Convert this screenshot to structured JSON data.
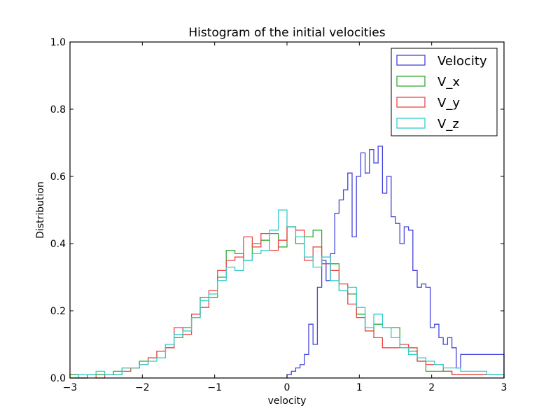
{
  "chart_data": {
    "type": "histogram-step",
    "title": "Histogram of the initial velocities",
    "xlabel": "velocity",
    "ylabel": "Distribution",
    "xlim": [
      -3,
      3
    ],
    "ylim": [
      0,
      1.0
    ],
    "x_ticks": [
      -3,
      -2,
      -1,
      0,
      1,
      2,
      3
    ],
    "x_tick_labels": [
      "−3",
      "−2",
      "−1",
      "0",
      "1",
      "2",
      "3"
    ],
    "y_ticks": [
      0,
      0.2,
      0.4,
      0.6,
      0.8,
      1.0
    ],
    "y_tick_labels": [
      "0.0",
      "0.2",
      "0.4",
      "0.6",
      "0.8",
      "1.0"
    ],
    "grid": false,
    "legend_position": "top-right",
    "series": [
      {
        "name": "Velocity",
        "color": "#4444dd",
        "x": [
          0,
          0.06,
          0.12,
          0.18,
          0.24,
          0.3,
          0.36,
          0.42,
          0.48,
          0.54,
          0.6,
          0.66,
          0.72,
          0.78,
          0.84,
          0.9,
          0.96,
          1.02,
          1.08,
          1.14,
          1.2,
          1.26,
          1.32,
          1.38,
          1.44,
          1.5,
          1.56,
          1.62,
          1.68,
          1.74,
          1.8,
          1.86,
          1.92,
          1.98,
          2.04,
          2.1,
          2.16,
          2.22,
          2.28,
          2.34,
          2.4,
          2.46,
          2.52,
          2.58,
          2.64,
          2.7,
          2.76,
          2.82,
          2.88,
          2.94
        ],
        "y": [
          0.01,
          0.02,
          0.03,
          0.04,
          0.07,
          0.16,
          0.1,
          0.27,
          0.35,
          0.29,
          0.37,
          0.49,
          0.53,
          0.56,
          0.61,
          0.42,
          0.6,
          0.67,
          0.61,
          0.68,
          0.64,
          0.69,
          0.55,
          0.6,
          0.48,
          0.46,
          0.4,
          0.45,
          0.44,
          0.32,
          0.27,
          0.28,
          0.27,
          0.15,
          0.16,
          0.12,
          0.1,
          0.12,
          0.09,
          0.03,
          0.07,
          0.07,
          0.07,
          0.07,
          0.07,
          0.07,
          0.07,
          0.07,
          0.07,
          0.07
        ]
      },
      {
        "name": "V_x",
        "color": "#33aa33",
        "x": [
          -3,
          -2.88,
          -2.76,
          -2.64,
          -2.52,
          -2.4,
          -2.28,
          -2.16,
          -2.04,
          -1.92,
          -1.8,
          -1.68,
          -1.56,
          -1.44,
          -1.32,
          -1.2,
          -1.08,
          -0.96,
          -0.84,
          -0.72,
          -0.6,
          -0.48,
          -0.36,
          -0.24,
          -0.12,
          0,
          0.12,
          0.24,
          0.36,
          0.48,
          0.6,
          0.72,
          0.84,
          0.96,
          1.08,
          1.2,
          1.32,
          1.44,
          1.56,
          1.68,
          1.8,
          1.92,
          2.04,
          2.16,
          2.28,
          2.4,
          2.52,
          2.64,
          2.76,
          2.88
        ],
        "y": [
          0.01,
          0.0,
          0.01,
          0.01,
          0.01,
          0.02,
          0.03,
          0.03,
          0.05,
          0.06,
          0.08,
          0.09,
          0.12,
          0.15,
          0.18,
          0.24,
          0.24,
          0.3,
          0.38,
          0.37,
          0.35,
          0.4,
          0.41,
          0.43,
          0.39,
          0.45,
          0.4,
          0.42,
          0.44,
          0.34,
          0.34,
          0.26,
          0.25,
          0.19,
          0.14,
          0.16,
          0.15,
          0.15,
          0.09,
          0.08,
          0.05,
          0.02,
          0.02,
          0.02,
          0.01,
          0.01,
          0.01,
          0.01,
          0.01,
          0.01
        ]
      },
      {
        "name": "V_y",
        "color": "#ee4444",
        "x": [
          -3,
          -2.88,
          -2.76,
          -2.64,
          -2.52,
          -2.4,
          -2.28,
          -2.16,
          -2.04,
          -1.92,
          -1.8,
          -1.68,
          -1.56,
          -1.44,
          -1.32,
          -1.2,
          -1.08,
          -0.96,
          -0.84,
          -0.72,
          -0.6,
          -0.48,
          -0.36,
          -0.24,
          -0.12,
          0,
          0.12,
          0.24,
          0.36,
          0.48,
          0.6,
          0.72,
          0.84,
          0.96,
          1.08,
          1.2,
          1.32,
          1.44,
          1.56,
          1.68,
          1.8,
          1.92,
          2.04,
          2.16,
          2.28,
          2.4,
          2.52,
          2.64,
          2.76,
          2.88
        ],
        "y": [
          0.0,
          0.0,
          0.01,
          0.0,
          0.01,
          0.01,
          0.02,
          0.03,
          0.04,
          0.06,
          0.08,
          0.09,
          0.15,
          0.13,
          0.19,
          0.21,
          0.26,
          0.32,
          0.35,
          0.36,
          0.42,
          0.39,
          0.43,
          0.38,
          0.41,
          0.45,
          0.44,
          0.35,
          0.39,
          0.34,
          0.32,
          0.28,
          0.22,
          0.18,
          0.14,
          0.12,
          0.09,
          0.09,
          0.1,
          0.09,
          0.05,
          0.04,
          0.04,
          0.02,
          0.01,
          0.01,
          0.01,
          0.01,
          0.01,
          0.01
        ]
      },
      {
        "name": "V_z",
        "color": "#33cccc",
        "x": [
          -3,
          -2.88,
          -2.76,
          -2.64,
          -2.52,
          -2.4,
          -2.28,
          -2.16,
          -2.04,
          -1.92,
          -1.8,
          -1.68,
          -1.56,
          -1.44,
          -1.32,
          -1.2,
          -1.08,
          -0.96,
          -0.84,
          -0.72,
          -0.6,
          -0.48,
          -0.36,
          -0.24,
          -0.12,
          0,
          0.12,
          0.24,
          0.36,
          0.48,
          0.6,
          0.72,
          0.84,
          0.96,
          1.08,
          1.2,
          1.32,
          1.44,
          1.56,
          1.68,
          1.8,
          1.92,
          2.04,
          2.16,
          2.28,
          2.4,
          2.52,
          2.64,
          2.76,
          2.88
        ],
        "y": [
          0.0,
          0.01,
          0.01,
          0.02,
          0.01,
          0.01,
          0.03,
          0.03,
          0.04,
          0.05,
          0.06,
          0.1,
          0.13,
          0.14,
          0.18,
          0.23,
          0.25,
          0.29,
          0.33,
          0.32,
          0.35,
          0.37,
          0.38,
          0.44,
          0.5,
          0.45,
          0.42,
          0.36,
          0.33,
          0.36,
          0.29,
          0.26,
          0.27,
          0.21,
          0.15,
          0.19,
          0.15,
          0.12,
          0.09,
          0.07,
          0.06,
          0.05,
          0.04,
          0.03,
          0.03,
          0.02,
          0.02,
          0.02,
          0.01,
          0.01
        ]
      }
    ]
  }
}
